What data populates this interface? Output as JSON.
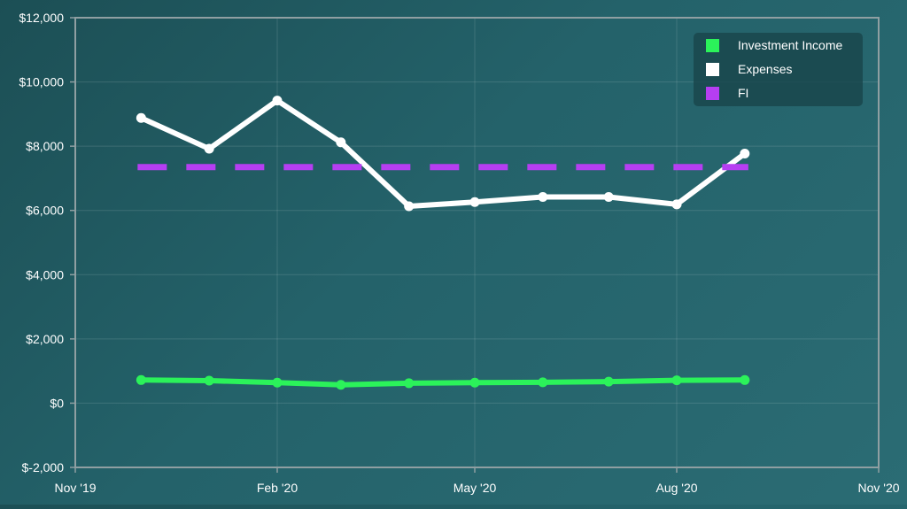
{
  "chart_data": {
    "type": "line",
    "x_axis": {
      "type": "time",
      "tick_labels": [
        "Nov '19",
        "Feb '20",
        "May '20",
        "Aug '20",
        "Nov '20"
      ],
      "range": [
        "2019-11-01",
        "2020-11-01"
      ]
    },
    "y_axis": {
      "tick_labels": [
        "$-2,000",
        "$0",
        "$2,000",
        "$4,000",
        "$6,000",
        "$8,000",
        "$10,000",
        "$12,000"
      ],
      "ylim": [
        -2000,
        12000
      ],
      "ticks": [
        -2000,
        0,
        2000,
        4000,
        6000,
        8000,
        10000,
        12000
      ]
    },
    "grid": true,
    "legend_position": "top-right",
    "x": [
      "2019-12-01",
      "2020-01-01",
      "2020-02-01",
      "2020-03-01",
      "2020-04-01",
      "2020-05-01",
      "2020-06-01",
      "2020-07-01",
      "2020-08-01",
      "2020-09-01"
    ],
    "series": [
      {
        "name": "Investment Income",
        "color": "#2bf25a",
        "style": "solid",
        "markers": true,
        "values": [
          720,
          700,
          640,
          570,
          620,
          640,
          650,
          670,
          710,
          720
        ]
      },
      {
        "name": "Expenses",
        "color": "#ffffff",
        "style": "solid",
        "markers": true,
        "values": [
          8880,
          7920,
          9420,
          8120,
          6130,
          6260,
          6420,
          6420,
          6190,
          7770
        ]
      },
      {
        "name": "FI",
        "color": "#b63ef2",
        "style": "dashed",
        "markers": false,
        "values": [
          7350,
          7350,
          7350,
          7350,
          7350,
          7350,
          7350,
          7350,
          7350,
          7350
        ]
      }
    ]
  }
}
